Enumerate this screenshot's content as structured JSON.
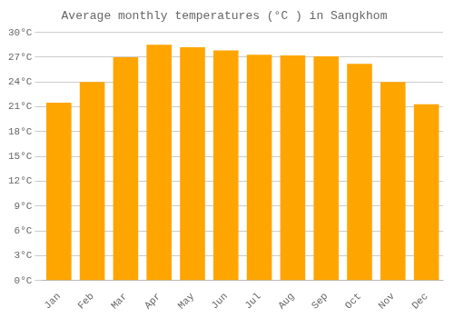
{
  "chart_data": {
    "type": "bar",
    "title": "Average monthly temperatures (°C ) in Sangkhom",
    "categories": [
      "Jan",
      "Feb",
      "Mar",
      "Apr",
      "May",
      "Jun",
      "Jul",
      "Aug",
      "Sep",
      "Oct",
      "Nov",
      "Dec"
    ],
    "values": [
      21.5,
      24.0,
      27.0,
      28.5,
      28.2,
      27.8,
      27.3,
      27.2,
      27.1,
      26.2,
      24.0,
      21.3
    ],
    "color": "#FFA500",
    "ylim": [
      0,
      30
    ],
    "yticks": [
      {
        "value": 0,
        "label": "0°C"
      },
      {
        "value": 3,
        "label": "3°C"
      },
      {
        "value": 6,
        "label": "6°C"
      },
      {
        "value": 9,
        "label": "9°C"
      },
      {
        "value": 12,
        "label": "12°C"
      },
      {
        "value": 15,
        "label": "15°C"
      },
      {
        "value": 18,
        "label": "18°C"
      },
      {
        "value": 21,
        "label": "21°C"
      },
      {
        "value": 24,
        "label": "24°C"
      },
      {
        "value": 27,
        "label": "27°C"
      },
      {
        "value": 30,
        "label": "30°C"
      }
    ],
    "grid": true
  }
}
